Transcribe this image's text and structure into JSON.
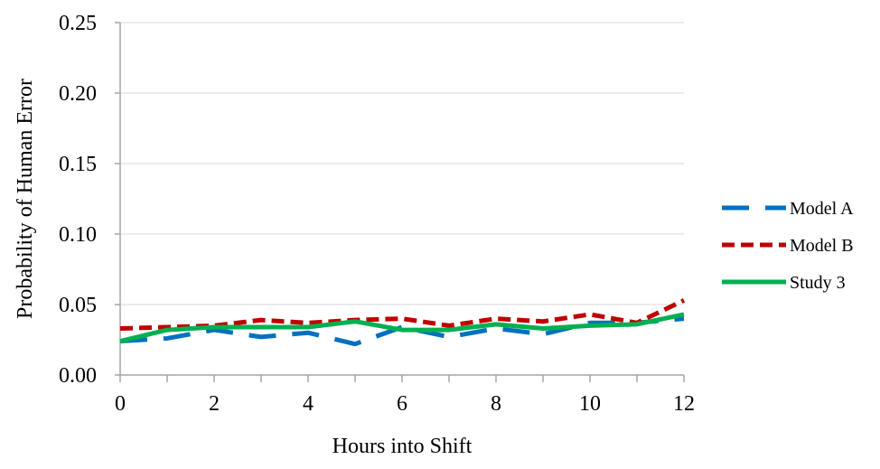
{
  "chart_data": {
    "type": "line",
    "title": "",
    "xlabel": "Hours into Shift",
    "ylabel": "Probability of Human Error",
    "xlim": [
      0,
      12
    ],
    "ylim": [
      0,
      0.25
    ],
    "x_ticks": [
      "0",
      "2",
      "4",
      "6",
      "8",
      "10",
      "12"
    ],
    "y_ticks": [
      "0.00",
      "0.05",
      "0.10",
      "0.15",
      "0.20",
      "0.25"
    ],
    "grid": "horizontal",
    "legend_position": "right",
    "x": [
      0,
      1,
      2,
      3,
      4,
      5,
      6,
      7,
      8,
      9,
      10,
      11,
      12
    ],
    "series": [
      {
        "name": "Model A",
        "color": "#0070C0",
        "dash": "long-dash",
        "values": [
          0.024,
          0.026,
          0.032,
          0.027,
          0.03,
          0.022,
          0.034,
          0.027,
          0.033,
          0.029,
          0.037,
          0.037,
          0.04
        ]
      },
      {
        "name": "Model B",
        "color": "#C00000",
        "dash": "short-dash",
        "values": [
          0.033,
          0.034,
          0.035,
          0.039,
          0.037,
          0.039,
          0.04,
          0.035,
          0.04,
          0.038,
          0.043,
          0.037,
          0.053
        ]
      },
      {
        "name": "Study 3",
        "color": "#00B050",
        "dash": "solid",
        "values": [
          0.024,
          0.032,
          0.034,
          0.034,
          0.034,
          0.038,
          0.032,
          0.032,
          0.036,
          0.033,
          0.035,
          0.036,
          0.043
        ]
      }
    ]
  }
}
